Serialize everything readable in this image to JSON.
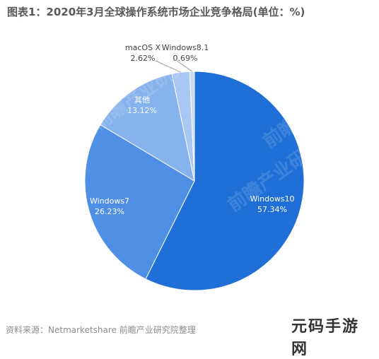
{
  "title": "图表1：2020年3月全球操作系统市场企业竞争格局(单位：%)",
  "source": "资料来源：Netmarketshare 前瞻产业研究院整理",
  "watermark_text": "前瞻产业研究院",
  "badge_text": "元码手游网",
  "colors": {
    "Windows10": "#1f6fd6",
    "Windows7": "#4f8fe6",
    "其他": "#86b2ee",
    "macOS X": "#a8c8f3",
    "Windows8.1": "#c7dcf7"
  },
  "chart_data": {
    "type": "pie",
    "title": "图表1：2020年3月全球操作系统市场企业竞争格局(单位：%)",
    "unit": "%",
    "slices": [
      {
        "label": "Windows10",
        "value": 57.34,
        "display": "57.34%"
      },
      {
        "label": "Windows7",
        "value": 26.23,
        "display": "26.23%"
      },
      {
        "label": "其他",
        "value": 13.12,
        "display": "13.12%"
      },
      {
        "label": "macOS X",
        "value": 2.62,
        "display": "2.62%"
      },
      {
        "label": "Windows8.1",
        "value": 0.69,
        "display": "0.69%"
      }
    ],
    "start": "12 o'clock",
    "direction": "clockwise"
  }
}
